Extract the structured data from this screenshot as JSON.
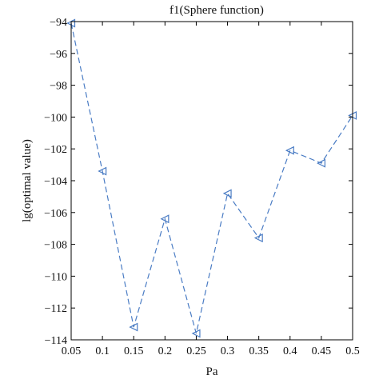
{
  "chart_data": {
    "type": "line",
    "title": "f1(Sphere function)",
    "xlabel": "Pa",
    "ylabel": "lg(optimal value)",
    "x": [
      0.05,
      0.1,
      0.15,
      0.2,
      0.25,
      0.3,
      0.35,
      0.4,
      0.45,
      0.5
    ],
    "x_tick_labels": [
      "0.05",
      "0.1",
      "0.15",
      "0.2",
      "0.25",
      "0.3",
      "0.35",
      "0.4",
      "0.45",
      "0.5"
    ],
    "y_ticks": [
      -94,
      -96,
      -98,
      -100,
      -102,
      -104,
      -106,
      -108,
      -110,
      -112,
      -114
    ],
    "y_tick_labels": [
      "−94",
      "−96",
      "−98",
      "−100",
      "−102",
      "−104",
      "−106",
      "−108",
      "−110",
      "−112",
      "−114"
    ],
    "xlim": [
      0.05,
      0.5
    ],
    "ylim": [
      -114,
      -94
    ],
    "grid": false,
    "series": [
      {
        "values": [
          -94.1,
          -103.4,
          -113.2,
          -106.4,
          -113.6,
          -104.8,
          -107.6,
          -102.1,
          -102.9,
          -99.9
        ],
        "color": "#4a7cc4",
        "line_style": "dashed",
        "marker": "triangle-left"
      }
    ]
  }
}
